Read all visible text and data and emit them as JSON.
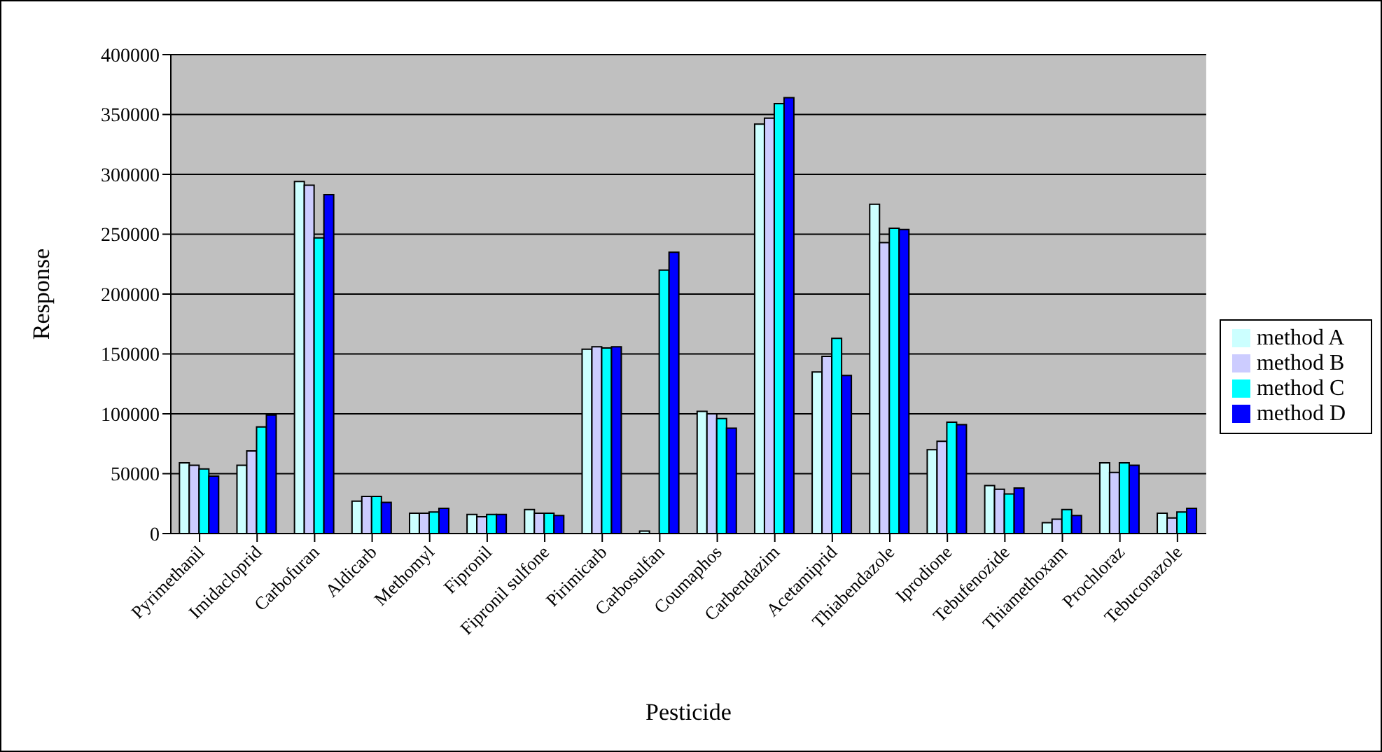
{
  "chart_data": {
    "type": "bar",
    "xlabel": "Pesticide",
    "ylabel": "Response",
    "categories": [
      "Pyrimethanil",
      "Imidacloprid",
      "Carbofuran",
      "Aldicarb",
      "Methomyl",
      "Fipronil",
      "Fipronil sulfone",
      "Pirimicarb",
      "Carbosulfan",
      "Coumaphos",
      "Carbendazim",
      "Acetamiprid",
      "Thiabendazole",
      "Iprodione",
      "Tebufenozide",
      "Thiamethoxam",
      "Prochloraz",
      "Tebuconazole"
    ],
    "series": [
      {
        "name": "method A",
        "color": "#ccffff",
        "values": [
          59000,
          57000,
          294000,
          27000,
          17000,
          16000,
          20000,
          154000,
          2000,
          102000,
          342000,
          135000,
          275000,
          70000,
          40000,
          9000,
          59000,
          17000
        ]
      },
      {
        "name": "method B",
        "color": "#ccccff",
        "values": [
          57000,
          69000,
          291000,
          31000,
          17000,
          14000,
          17000,
          156000,
          0,
          100000,
          347000,
          148000,
          243000,
          77000,
          37000,
          12000,
          51000,
          13000
        ]
      },
      {
        "name": "method C",
        "color": "#00ffff",
        "values": [
          54000,
          89000,
          247000,
          31000,
          18000,
          16000,
          17000,
          155000,
          220000,
          96000,
          359000,
          163000,
          255000,
          93000,
          33000,
          20000,
          59000,
          18000
        ]
      },
      {
        "name": "method D",
        "color": "#0000ff",
        "values": [
          48000,
          99000,
          283000,
          26000,
          21000,
          16000,
          15000,
          156000,
          235000,
          88000,
          364000,
          132000,
          254000,
          91000,
          38000,
          15000,
          57000,
          21000
        ]
      }
    ],
    "ylim": [
      0,
      400000
    ],
    "yticks": [
      0,
      50000,
      100000,
      150000,
      200000,
      250000,
      300000,
      350000,
      400000
    ],
    "grid": "y",
    "legend": "right"
  }
}
